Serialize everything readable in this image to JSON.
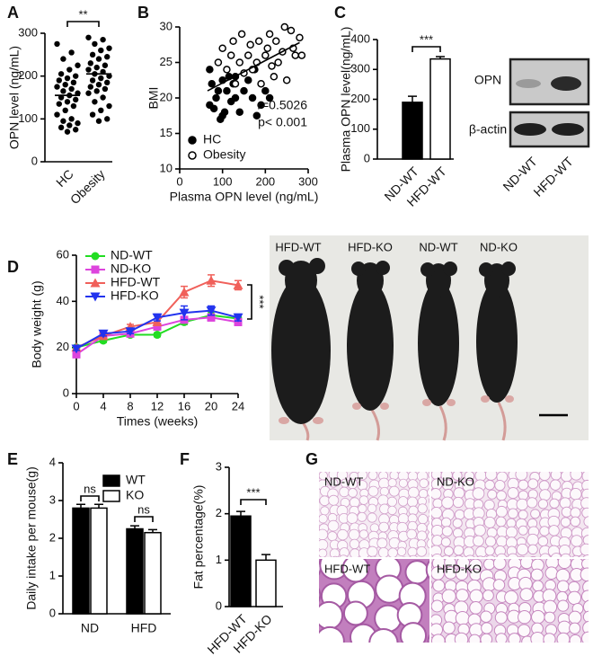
{
  "chart_data": [
    {
      "type": "dot",
      "panel": "A",
      "ylabel": "OPN level (ng/mL)",
      "categories": [
        "HC",
        "Obesity"
      ],
      "values": [
        [
          275,
          255,
          240,
          225,
          215,
          205,
          200,
          195,
          190,
          185,
          180,
          175,
          170,
          165,
          160,
          155,
          150,
          145,
          140,
          135,
          130,
          120,
          110,
          100,
          95,
          90,
          85,
          80,
          75,
          70
        ],
        [
          290,
          285,
          275,
          265,
          260,
          250,
          245,
          240,
          230,
          225,
          220,
          215,
          210,
          205,
          200,
          195,
          190,
          185,
          180,
          175,
          170,
          165,
          160,
          150,
          140,
          130,
          120,
          110,
          100,
          95
        ]
      ],
      "means": [
        155,
        205
      ],
      "color": "#000000",
      "ylim": [
        0,
        300
      ],
      "yticks": [
        0,
        100,
        200,
        300
      ],
      "annotations": [
        "**"
      ]
    },
    {
      "type": "scatter",
      "panel": "B",
      "ylabel": "BMI",
      "xlabel": "Plasma OPN level (ng/mL)",
      "series": [
        {
          "name": "HC",
          "color": "#000000",
          "filled": true,
          "x": [
            70,
            75,
            80,
            85,
            90,
            95,
            100,
            105,
            110,
            115,
            120,
            125,
            130,
            140,
            150,
            160,
            170,
            175,
            180,
            190,
            200,
            210,
            70,
            100,
            130
          ],
          "values": [
            19,
            22,
            18.5,
            20,
            21,
            17,
            22.5,
            18,
            21,
            23,
            19.5,
            22,
            20,
            18,
            21,
            22.5,
            20,
            24,
            17.5,
            19,
            21,
            20,
            24,
            17.5,
            23
          ]
        },
        {
          "name": "Obesity",
          "color": "#000000",
          "filled": false,
          "x": [
            90,
            100,
            110,
            120,
            125,
            130,
            140,
            145,
            150,
            160,
            165,
            170,
            180,
            185,
            190,
            200,
            205,
            210,
            215,
            220,
            225,
            230,
            240,
            245,
            250,
            260,
            265,
            270,
            280,
            285
          ],
          "values": [
            25,
            27,
            24,
            26,
            28,
            22,
            25,
            29,
            23.5,
            26,
            27.5,
            24,
            25,
            28,
            22,
            26,
            27,
            29,
            24.5,
            23,
            28,
            25,
            26.5,
            30,
            22.5,
            29.5,
            27,
            26,
            28.5,
            26
          ]
        }
      ],
      "fit": {
        "x": [
          65,
          280
        ],
        "y": [
          21,
          27.8
        ]
      },
      "xlim": [
        0,
        300
      ],
      "xticks": [
        0,
        100,
        200,
        300
      ],
      "ylim": [
        10,
        30
      ],
      "yticks": [
        10,
        15,
        20,
        25,
        30
      ],
      "annotations": [
        "r=0.5026",
        "p< 0.001"
      ]
    },
    {
      "type": "bar",
      "panel": "C",
      "ylabel": "Plasma OPN level(ng/mL)",
      "categories": [
        "ND-WT",
        "HFD-WT"
      ],
      "values": [
        190,
        335
      ],
      "errors": [
        20,
        8
      ],
      "colors": [
        "#000000",
        "#ffffff"
      ],
      "ylim": [
        0,
        400
      ],
      "yticks": [
        0,
        100,
        200,
        300,
        400
      ],
      "annotations": [
        "***"
      ]
    },
    {
      "type": "line",
      "panel": "D",
      "ylabel": "Body weight (g)",
      "xlabel": "Times (weeks)",
      "x": [
        0,
        4,
        8,
        12,
        16,
        20,
        24
      ],
      "series": [
        {
          "name": "ND-WT",
          "color": "#22dd22",
          "marker": "circle",
          "values": [
            20,
            23,
            25.5,
            25.5,
            31,
            34,
            32.5
          ],
          "errors": [
            0.5,
            0.8,
            0.8,
            0.8,
            1,
            1.5,
            1
          ]
        },
        {
          "name": "ND-KO",
          "color": "#dd44dd",
          "marker": "square",
          "values": [
            17,
            25,
            26,
            29,
            32,
            33,
            31
          ],
          "errors": [
            0.8,
            0.8,
            0.8,
            1,
            1,
            1.5,
            1.5
          ]
        },
        {
          "name": "HFD-WT",
          "color": "#f0605a",
          "marker": "triangle-up",
          "values": [
            20,
            25,
            29,
            31,
            44,
            49,
            47
          ],
          "errors": [
            0.8,
            1,
            1,
            1.5,
            2.5,
            2.5,
            2
          ]
        },
        {
          "name": "HFD-KO",
          "color": "#2233ee",
          "marker": "triangle-down",
          "values": [
            19.5,
            26,
            27,
            33,
            35,
            36,
            33
          ],
          "errors": [
            0.8,
            1,
            1,
            1.5,
            3,
            2,
            1.5
          ]
        }
      ],
      "xlim": [
        0,
        24
      ],
      "xticks": [
        0,
        4,
        8,
        12,
        16,
        20,
        24
      ],
      "ylim": [
        0,
        60
      ],
      "yticks": [
        0,
        20,
        40,
        60
      ],
      "annotations": [
        "***"
      ]
    },
    {
      "type": "bar",
      "panel": "E",
      "ylabel": "Daily intake per mouse(g)",
      "categories": [
        "ND",
        "HFD"
      ],
      "series": [
        {
          "name": "WT",
          "color": "#000000",
          "values": [
            2.8,
            2.25
          ],
          "errors": [
            0.1,
            0.08
          ]
        },
        {
          "name": "KO",
          "color": "#ffffff",
          "values": [
            2.8,
            2.15
          ],
          "errors": [
            0.1,
            0.08
          ]
        }
      ],
      "ylim": [
        0,
        4
      ],
      "yticks": [
        0,
        1,
        2,
        3,
        4
      ],
      "annotations": [
        "ns",
        "ns"
      ]
    },
    {
      "type": "bar",
      "panel": "F",
      "ylabel": "Fat percentage(%)",
      "categories": [
        "HFD-WT",
        "HFD-KO"
      ],
      "values": [
        1.95,
        1.0
      ],
      "errors": [
        0.1,
        0.12
      ],
      "colors": [
        "#000000",
        "#ffffff"
      ],
      "ylim": [
        0,
        3
      ],
      "yticks": [
        0,
        1,
        2,
        3
      ],
      "annotations": [
        "***"
      ]
    }
  ],
  "blot": {
    "rows": [
      "OPN",
      "β-actin"
    ],
    "lanes": [
      "ND-WT",
      "HFD-WT"
    ]
  },
  "photo": {
    "labels": [
      "HFD-WT",
      "HFD-KO",
      "ND-WT",
      "ND-KO"
    ]
  },
  "histology": {
    "panel": "G",
    "labels": [
      "ND-WT",
      "ND-KO",
      "HFD-WT",
      "HFD-KO"
    ]
  }
}
